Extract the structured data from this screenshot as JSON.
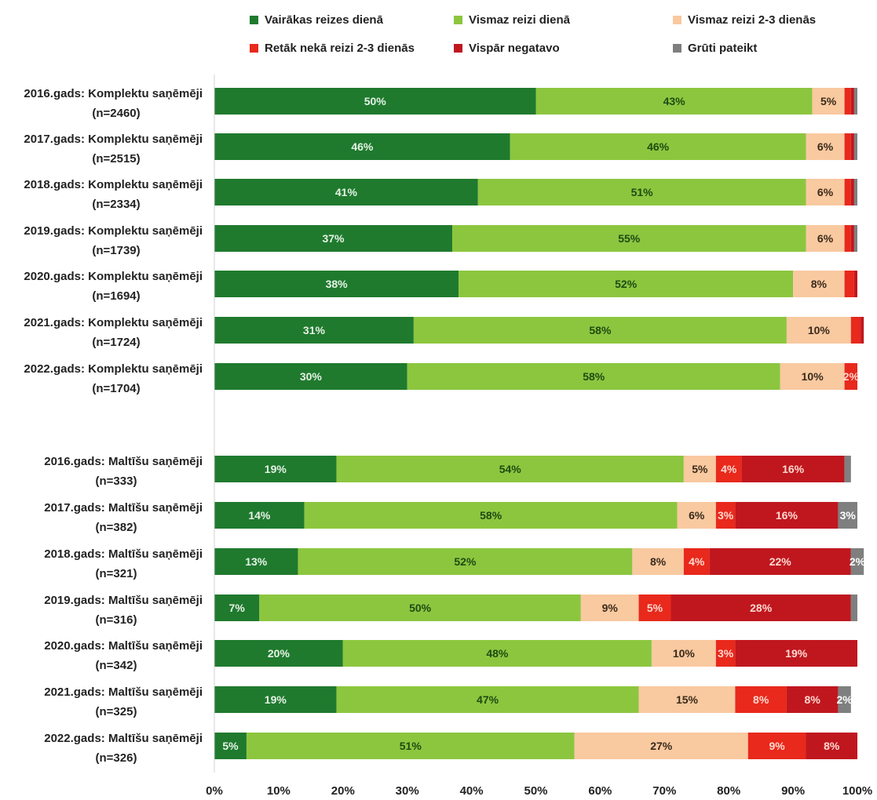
{
  "chart_data": {
    "type": "bar",
    "orientation": "horizontal",
    "stacked": true,
    "title": "",
    "xlabel": "",
    "ylabel": "",
    "xlim": [
      0,
      100
    ],
    "x_ticks": [
      "0%",
      "10%",
      "20%",
      "30%",
      "40%",
      "50%",
      "60%",
      "70%",
      "80%",
      "90%",
      "100%"
    ],
    "grid": false,
    "legend_position": "top",
    "categories": [
      [
        "2016.gads: Komplektu saņēmēji",
        "(n=2460)"
      ],
      [
        "2017.gads: Komplektu saņēmēji",
        "(n=2515)"
      ],
      [
        "2018.gads: Komplektu saņēmēji",
        "(n=2334)"
      ],
      [
        "2019.gads: Komplektu saņēmēji",
        "(n=1739)"
      ],
      [
        "2020.gads: Komplektu saņēmēji",
        "(n=1694)"
      ],
      [
        "2021.gads: Komplektu saņēmēji",
        "(n=1724)"
      ],
      [
        "2022.gads: Komplektu saņēmēji",
        "(n=1704)"
      ],
      [
        "2016.gads: Maltīšu saņēmēji",
        "(n=333)"
      ],
      [
        "2017.gads: Maltīšu saņēmēji",
        "(n=382)"
      ],
      [
        "2018.gads: Maltīšu saņēmēji",
        "(n=321)"
      ],
      [
        "2019.gads: Maltīšu saņēmēji",
        "(n=316)"
      ],
      [
        "2020.gads: Maltīšu saņēmēji",
        "(n=342)"
      ],
      [
        "2021.gads: Maltīšu saņēmēji",
        "(n=325)"
      ],
      [
        "2022.gads: Maltīšu saņēmēji",
        "(n=326)"
      ]
    ],
    "series": [
      {
        "name": "Vairākas reizes dienā",
        "color": "#1f7a2e",
        "label_color": "#e6f2e6",
        "values": [
          50,
          46,
          41,
          37,
          38,
          31,
          30,
          19,
          14,
          13,
          7,
          20,
          19,
          5
        ]
      },
      {
        "name": "Vismaz reizi dienā",
        "color": "#8cc63f",
        "label_color": "#1f4a12",
        "values": [
          43,
          46,
          51,
          55,
          52,
          58,
          58,
          54,
          58,
          52,
          50,
          48,
          47,
          51
        ]
      },
      {
        "name": "Vismaz reizi 2-3 dienās",
        "color": "#f9c9a0",
        "label_color": "#3a2a1a",
        "values": [
          5,
          6,
          6,
          6,
          8,
          10,
          10,
          5,
          6,
          8,
          9,
          10,
          15,
          27
        ]
      },
      {
        "name": "Retāk nekā reizi 2-3 dienās",
        "color": "#e8291c",
        "label_color": "#ffd9d0",
        "values": [
          1,
          1,
          1,
          1,
          1.5,
          1.5,
          2,
          4,
          3,
          4,
          5,
          3,
          8,
          9
        ]
      },
      {
        "name": "Vispār negatavo",
        "color": "#c0171f",
        "label_color": "#ffd9d0",
        "values": [
          0.5,
          0.5,
          0.5,
          0.5,
          0.5,
          0.5,
          0,
          16,
          16,
          22,
          28,
          19,
          8,
          8
        ]
      },
      {
        "name": "Grūti pateikt",
        "color": "#7f7f7f",
        "label_color": "#ffffff",
        "values": [
          0.5,
          0.5,
          0.5,
          0.5,
          0,
          0,
          0,
          1,
          3,
          2,
          1,
          0,
          2,
          0
        ]
      }
    ],
    "labels": [
      [
        "50%",
        "43%",
        "5%",
        "",
        "",
        ""
      ],
      [
        "46%",
        "46%",
        "6%",
        "",
        "",
        ""
      ],
      [
        "41%",
        "51%",
        "6%",
        "",
        "",
        ""
      ],
      [
        "37%",
        "55%",
        "6%",
        "",
        "",
        ""
      ],
      [
        "38%",
        "52%",
        "8%",
        "",
        "",
        ""
      ],
      [
        "31%",
        "58%",
        "10%",
        "",
        "",
        ""
      ],
      [
        "30%",
        "58%",
        "10%",
        "2%",
        "",
        ""
      ],
      [
        "19%",
        "54%",
        "5%",
        "4%",
        "16%",
        ""
      ],
      [
        "14%",
        "58%",
        "6%",
        "3%",
        "16%",
        "3%"
      ],
      [
        "13%",
        "52%",
        "8%",
        "4%",
        "22%",
        "2%"
      ],
      [
        "7%",
        "50%",
        "9%",
        "5%",
        "28%",
        ""
      ],
      [
        "20%",
        "48%",
        "10%",
        "3%",
        "19%",
        ""
      ],
      [
        "19%",
        "47%",
        "15%",
        "8%",
        "8%",
        "2%"
      ],
      [
        "5%",
        "51%",
        "27%",
        "9%",
        "8%",
        ""
      ]
    ]
  }
}
